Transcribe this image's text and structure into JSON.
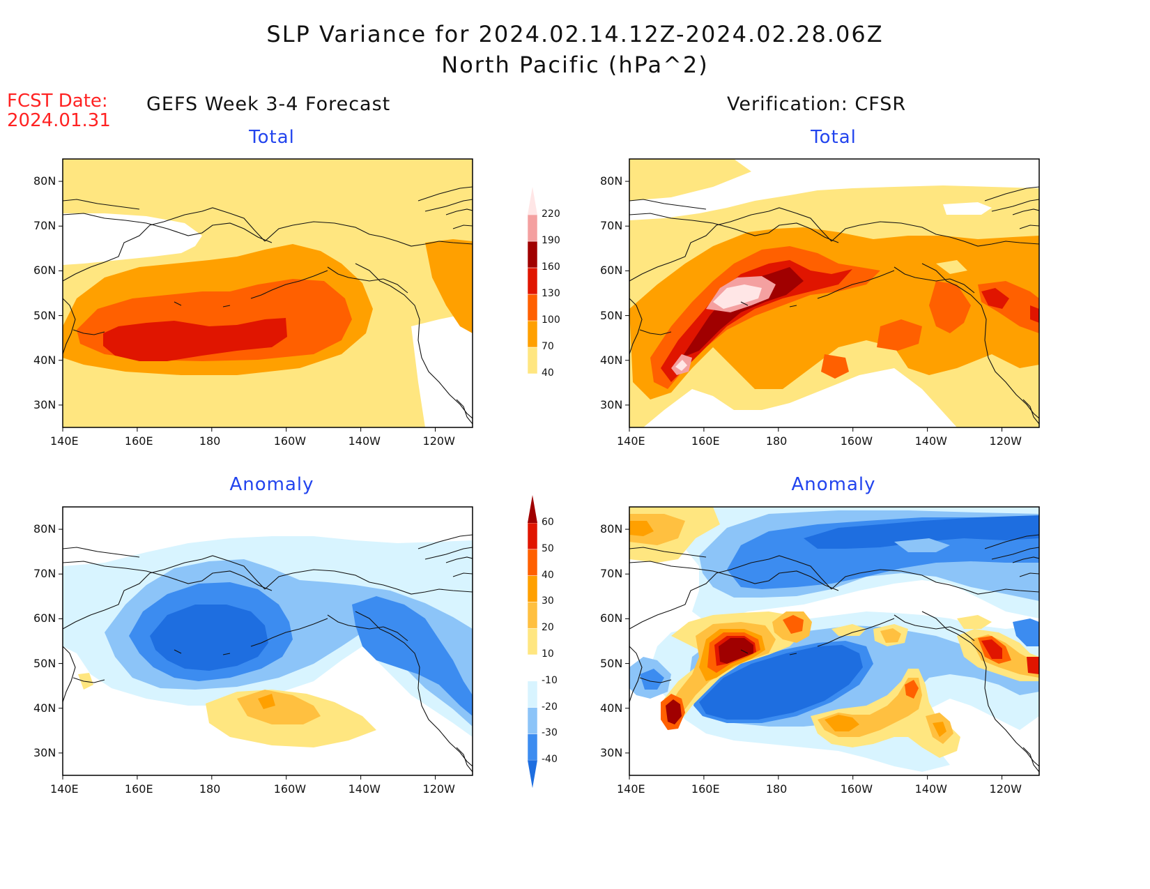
{
  "header": {
    "title_line1": "SLP Variance for 2024.02.14.12Z-2024.02.28.06Z",
    "title_line2": "North Pacific (hPa^2)",
    "fcst_label": "FCST Date:",
    "fcst_date": "2024.01.31",
    "left_column": "GEFS Week 3-4 Forecast",
    "right_column": "Verification: CFSR"
  },
  "panels": {
    "top_left_title": "Total",
    "top_right_title": "Total",
    "bottom_left_title": "Anomaly",
    "bottom_right_title": "Anomaly"
  },
  "axes": {
    "lat_labels": [
      "80N",
      "70N",
      "60N",
      "50N",
      "40N",
      "30N"
    ],
    "lat_values": [
      80,
      70,
      60,
      50,
      40,
      30
    ],
    "lon_labels": [
      "140E",
      "160E",
      "180",
      "160W",
      "140W",
      "120W"
    ],
    "lon_values": [
      140,
      160,
      180,
      200,
      220,
      240
    ],
    "lon_range": [
      140,
      250
    ],
    "lat_range": [
      25,
      85
    ]
  },
  "colorbars": {
    "total": {
      "levels": [
        "40",
        "70",
        "100",
        "130",
        "160",
        "190",
        "220"
      ],
      "colors": [
        "#ffe680",
        "#ffa000",
        "#ff6000",
        "#e01500",
        "#a00000",
        "#f4a0a0",
        "#ffe6e6"
      ]
    },
    "anomaly": {
      "levels": [
        "-40",
        "-30",
        "-20",
        "-10",
        "10",
        "20",
        "30",
        "40",
        "50",
        "60"
      ],
      "colors": [
        "#1e6ee0",
        "#3c8cf0",
        "#8cc4f8",
        "#d8f4ff",
        "#ffffff",
        "#ffe680",
        "#ffc040",
        "#ffa000",
        "#ff6000",
        "#e01500",
        "#a00000"
      ]
    }
  },
  "legend_colors": {
    "title_text": "#111111",
    "fcst_text": "#ff2222",
    "panel_title_text": "#2244ee"
  }
}
